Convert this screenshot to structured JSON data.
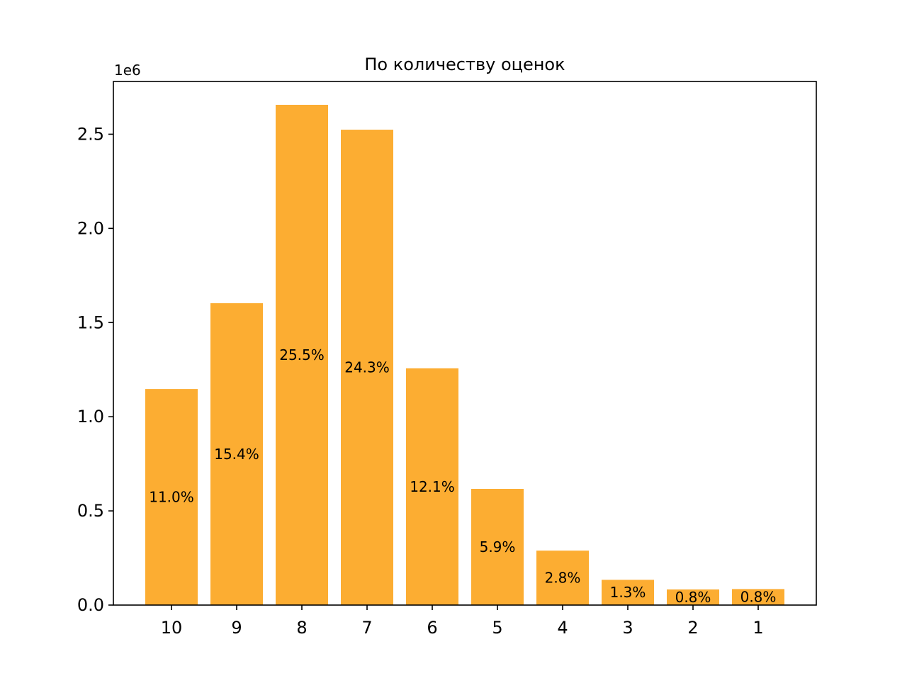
{
  "chart_data": {
    "type": "bar",
    "title": "По количеству оценок",
    "xlabel": "",
    "ylabel": "",
    "y_offset_label": "1e6",
    "categories": [
      "10",
      "9",
      "8",
      "7",
      "6",
      "5",
      "4",
      "3",
      "2",
      "1"
    ],
    "values": [
      1147000,
      1603000,
      2656000,
      2524000,
      1257000,
      617000,
      289000,
      134000,
      83000,
      85000
    ],
    "bar_labels": [
      "11.0%",
      "15.4%",
      "25.5%",
      "24.3%",
      "12.1%",
      "5.9%",
      "2.8%",
      "1.3%",
      "0.8%",
      "0.8%"
    ],
    "ylim": [
      0,
      2780000
    ],
    "yticks": [
      0,
      500000,
      1000000,
      1500000,
      2000000,
      2500000
    ],
    "ytick_labels": [
      "0.0",
      "0.5",
      "1.0",
      "1.5",
      "2.0",
      "2.5"
    ],
    "grid": false,
    "legend": "none",
    "bar_color": "#fcad32"
  }
}
